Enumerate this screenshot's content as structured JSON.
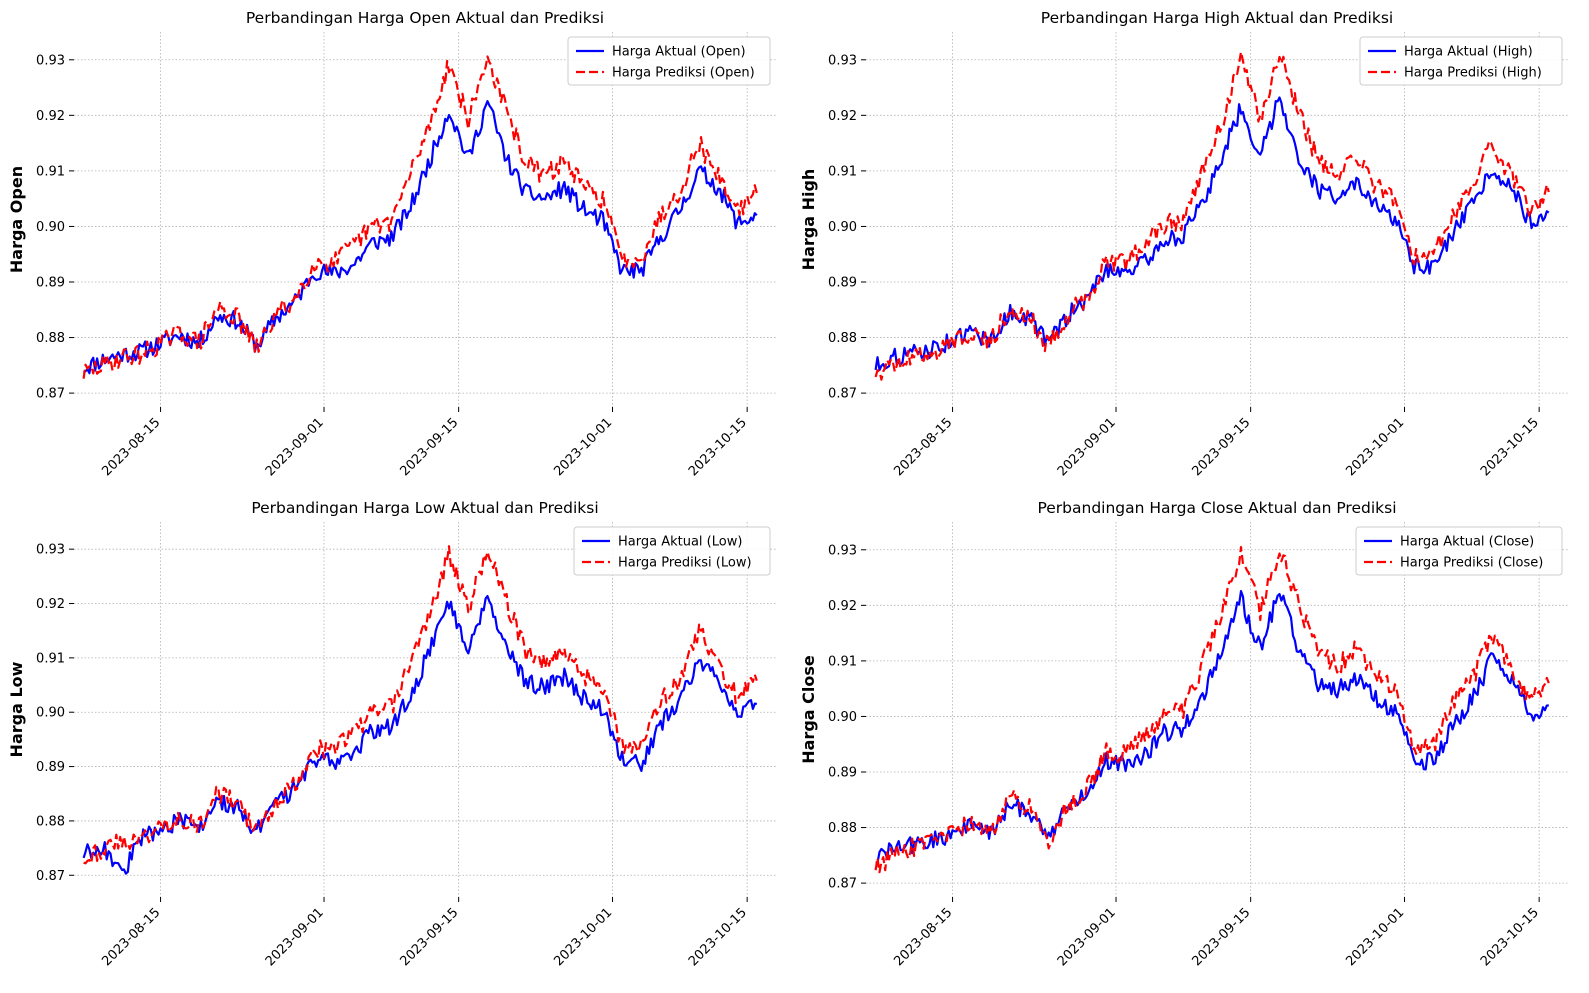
{
  "chart_data": [
    {
      "type": "line",
      "title": "Perbandingan Harga Open Aktual dan Prediksi",
      "xlabel": "",
      "ylabel": "Harga Open",
      "xlim": [
        "2023-08-06",
        "2023-10-18"
      ],
      "ylim": [
        0.8675,
        0.935
      ],
      "x_ticks": [
        "2023-08-15",
        "2023-09-01",
        "2023-09-15",
        "2023-10-01",
        "2023-10-15"
      ],
      "y_ticks": [
        "0.87",
        "0.88",
        "0.89",
        "0.90",
        "0.91",
        "0.92",
        "0.93"
      ],
      "grid": true,
      "legend": "top-right",
      "series": [
        {
          "name": "Harga Aktual (Open)",
          "color": "#0000ff",
          "style": "solid",
          "x": [
            "2023-08-07",
            "2023-08-09",
            "2023-08-11",
            "2023-08-13",
            "2023-08-15",
            "2023-08-17",
            "2023-08-19",
            "2023-08-21",
            "2023-08-23",
            "2023-08-25",
            "2023-08-27",
            "2023-08-29",
            "2023-08-31",
            "2023-09-02",
            "2023-09-04",
            "2023-09-06",
            "2023-09-08",
            "2023-09-10",
            "2023-09-12",
            "2023-09-14",
            "2023-09-16",
            "2023-09-18",
            "2023-09-20",
            "2023-09-22",
            "2023-09-24",
            "2023-09-26",
            "2023-09-28",
            "2023-09-30",
            "2023-10-02",
            "2023-10-04",
            "2023-10-06",
            "2023-10-08",
            "2023-10-10",
            "2023-10-12",
            "2023-10-14",
            "2023-10-16"
          ],
          "y": [
            0.8745,
            0.876,
            0.877,
            0.8775,
            0.879,
            0.8805,
            0.879,
            0.884,
            0.883,
            0.8785,
            0.8835,
            0.8865,
            0.892,
            0.8915,
            0.893,
            0.897,
            0.898,
            0.9035,
            0.912,
            0.921,
            0.912,
            0.9225,
            0.912,
            0.906,
            0.905,
            0.907,
            0.903,
            0.901,
            0.892,
            0.892,
            0.898,
            0.903,
            0.91,
            0.907,
            0.9005,
            0.902
          ]
        },
        {
          "name": "Harga Prediksi (Open)",
          "color": "#ff0000",
          "style": "dashed",
          "x": [
            "2023-08-07",
            "2023-08-09",
            "2023-08-11",
            "2023-08-13",
            "2023-08-15",
            "2023-08-17",
            "2023-08-19",
            "2023-08-21",
            "2023-08-23",
            "2023-08-25",
            "2023-08-27",
            "2023-08-29",
            "2023-08-31",
            "2023-09-02",
            "2023-09-04",
            "2023-09-06",
            "2023-09-08",
            "2023-09-10",
            "2023-09-12",
            "2023-09-14",
            "2023-09-16",
            "2023-09-18",
            "2023-09-20",
            "2023-09-22",
            "2023-09-24",
            "2023-09-26",
            "2023-09-28",
            "2023-09-30",
            "2023-10-02",
            "2023-10-04",
            "2023-10-06",
            "2023-10-08",
            "2023-10-10",
            "2023-10-12",
            "2023-10-14",
            "2023-10-16"
          ],
          "y": [
            0.8735,
            0.875,
            0.8765,
            0.877,
            0.879,
            0.881,
            0.879,
            0.8855,
            0.8835,
            0.878,
            0.884,
            0.887,
            0.8935,
            0.8935,
            0.8965,
            0.9,
            0.901,
            0.9095,
            0.9185,
            0.9295,
            0.919,
            0.9305,
            0.9205,
            0.9115,
            0.909,
            0.912,
            0.907,
            0.905,
            0.894,
            0.8945,
            0.902,
            0.9065,
            0.915,
            0.909,
            0.903,
            0.906
          ]
        }
      ]
    },
    {
      "type": "line",
      "title": "Perbandingan Harga High Aktual dan Prediksi",
      "xlabel": "",
      "ylabel": "Harga High",
      "xlim": [
        "2023-08-06",
        "2023-10-18"
      ],
      "ylim": [
        0.8675,
        0.935
      ],
      "x_ticks": [
        "2023-08-15",
        "2023-09-01",
        "2023-09-15",
        "2023-10-01",
        "2023-10-15"
      ],
      "y_ticks": [
        "0.87",
        "0.88",
        "0.89",
        "0.90",
        "0.91",
        "0.92",
        "0.93"
      ],
      "grid": true,
      "legend": "top-right",
      "series": [
        {
          "name": "Harga Aktual (High)",
          "color": "#0000ff",
          "style": "solid",
          "x": [
            "2023-08-07",
            "2023-08-09",
            "2023-08-11",
            "2023-08-13",
            "2023-08-15",
            "2023-08-17",
            "2023-08-19",
            "2023-08-21",
            "2023-08-23",
            "2023-08-25",
            "2023-08-27",
            "2023-08-29",
            "2023-08-31",
            "2023-09-02",
            "2023-09-04",
            "2023-09-06",
            "2023-09-08",
            "2023-09-10",
            "2023-09-12",
            "2023-09-14",
            "2023-09-16",
            "2023-09-18",
            "2023-09-20",
            "2023-09-22",
            "2023-09-24",
            "2023-09-26",
            "2023-09-28",
            "2023-09-30",
            "2023-10-02",
            "2023-10-04",
            "2023-10-06",
            "2023-10-08",
            "2023-10-10",
            "2023-10-12",
            "2023-10-14",
            "2023-10-16"
          ],
          "y": [
            0.875,
            0.8765,
            0.8772,
            0.878,
            0.8795,
            0.881,
            0.8795,
            0.8845,
            0.8835,
            0.879,
            0.884,
            0.887,
            0.8925,
            0.892,
            0.8935,
            0.8975,
            0.8985,
            0.904,
            0.9125,
            0.9215,
            0.9125,
            0.9235,
            0.9125,
            0.9065,
            0.9055,
            0.9075,
            0.9035,
            0.9015,
            0.8925,
            0.8925,
            0.8985,
            0.9035,
            0.9105,
            0.9075,
            0.901,
            0.9025
          ]
        },
        {
          "name": "Harga Prediksi (High)",
          "color": "#ff0000",
          "style": "dashed",
          "x": [
            "2023-08-07",
            "2023-08-09",
            "2023-08-11",
            "2023-08-13",
            "2023-08-15",
            "2023-08-17",
            "2023-08-19",
            "2023-08-21",
            "2023-08-23",
            "2023-08-25",
            "2023-08-27",
            "2023-08-29",
            "2023-08-31",
            "2023-09-02",
            "2023-09-04",
            "2023-09-06",
            "2023-09-08",
            "2023-09-10",
            "2023-09-12",
            "2023-09-14",
            "2023-09-16",
            "2023-09-18",
            "2023-09-20",
            "2023-09-22",
            "2023-09-24",
            "2023-09-26",
            "2023-09-28",
            "2023-09-30",
            "2023-10-02",
            "2023-10-04",
            "2023-10-06",
            "2023-10-08",
            "2023-10-10",
            "2023-10-12",
            "2023-10-14",
            "2023-10-16"
          ],
          "y": [
            0.8738,
            0.8752,
            0.8768,
            0.8772,
            0.8792,
            0.8812,
            0.8792,
            0.8858,
            0.8838,
            0.8782,
            0.8842,
            0.8872,
            0.8938,
            0.8938,
            0.8968,
            0.9002,
            0.9012,
            0.9098,
            0.9188,
            0.9298,
            0.9192,
            0.9308,
            0.9208,
            0.9118,
            0.9092,
            0.9122,
            0.9072,
            0.9052,
            0.8942,
            0.8948,
            0.9022,
            0.9068,
            0.9152,
            0.9092,
            0.9032,
            0.9062
          ]
        }
      ]
    },
    {
      "type": "line",
      "title": "Perbandingan Harga Low Aktual dan Prediksi",
      "xlabel": "",
      "ylabel": "Harga Low",
      "xlim": [
        "2023-08-06",
        "2023-10-18"
      ],
      "ylim": [
        0.866,
        0.935
      ],
      "x_ticks": [
        "2023-08-15",
        "2023-09-01",
        "2023-09-15",
        "2023-10-01",
        "2023-10-15"
      ],
      "y_ticks": [
        "0.87",
        "0.88",
        "0.89",
        "0.90",
        "0.91",
        "0.92",
        "0.93"
      ],
      "grid": true,
      "legend": "top-right",
      "series": [
        {
          "name": "Harga Aktual (Low)",
          "color": "#0000ff",
          "style": "solid",
          "x": [
            "2023-08-07",
            "2023-08-09",
            "2023-08-11",
            "2023-08-13",
            "2023-08-15",
            "2023-08-17",
            "2023-08-19",
            "2023-08-21",
            "2023-08-23",
            "2023-08-25",
            "2023-08-27",
            "2023-08-29",
            "2023-08-31",
            "2023-09-02",
            "2023-09-04",
            "2023-09-06",
            "2023-09-08",
            "2023-09-10",
            "2023-09-12",
            "2023-09-14",
            "2023-09-16",
            "2023-09-18",
            "2023-09-20",
            "2023-09-22",
            "2023-09-24",
            "2023-09-26",
            "2023-09-28",
            "2023-09-30",
            "2023-10-02",
            "2023-10-04",
            "2023-10-06",
            "2023-10-08",
            "2023-10-10",
            "2023-10-12",
            "2023-10-14",
            "2023-10-16"
          ],
          "y": [
            0.874,
            0.8755,
            0.87,
            0.877,
            0.8785,
            0.88,
            0.8785,
            0.8835,
            0.8825,
            0.878,
            0.883,
            0.886,
            0.8915,
            0.891,
            0.8925,
            0.8965,
            0.8975,
            0.903,
            0.9115,
            0.9205,
            0.9115,
            0.922,
            0.9115,
            0.9055,
            0.9045,
            0.9065,
            0.9025,
            0.9005,
            0.8915,
            0.8905,
            0.8975,
            0.9025,
            0.9095,
            0.9065,
            0.9,
            0.9015
          ]
        },
        {
          "name": "Harga Prediksi (Low)",
          "color": "#ff0000",
          "style": "dashed",
          "x": [
            "2023-08-07",
            "2023-08-09",
            "2023-08-11",
            "2023-08-13",
            "2023-08-15",
            "2023-08-17",
            "2023-08-19",
            "2023-08-21",
            "2023-08-23",
            "2023-08-25",
            "2023-08-27",
            "2023-08-29",
            "2023-08-31",
            "2023-09-02",
            "2023-09-04",
            "2023-09-06",
            "2023-09-08",
            "2023-09-10",
            "2023-09-12",
            "2023-09-14",
            "2023-09-16",
            "2023-09-18",
            "2023-09-20",
            "2023-09-22",
            "2023-09-24",
            "2023-09-26",
            "2023-09-28",
            "2023-09-30",
            "2023-10-02",
            "2023-10-04",
            "2023-10-06",
            "2023-10-08",
            "2023-10-10",
            "2023-10-12",
            "2023-10-14",
            "2023-10-16"
          ],
          "y": [
            0.8732,
            0.8748,
            0.8762,
            0.8768,
            0.8788,
            0.8808,
            0.8788,
            0.8852,
            0.8832,
            0.8778,
            0.8838,
            0.8868,
            0.8932,
            0.8932,
            0.8962,
            0.8998,
            0.9008,
            0.9092,
            0.9182,
            0.9292,
            0.9188,
            0.9302,
            0.9202,
            0.9112,
            0.9088,
            0.9118,
            0.9068,
            0.9048,
            0.8938,
            0.8942,
            0.9018,
            0.9062,
            0.9148,
            0.9088,
            0.9028,
            0.9058
          ]
        }
      ]
    },
    {
      "type": "line",
      "title": "Perbandingan Harga Close Aktual dan Prediksi",
      "xlabel": "",
      "ylabel": "Harga Close",
      "xlim": [
        "2023-08-06",
        "2023-10-18"
      ],
      "ylim": [
        0.8675,
        0.935
      ],
      "x_ticks": [
        "2023-08-15",
        "2023-09-01",
        "2023-09-15",
        "2023-10-01",
        "2023-10-15"
      ],
      "y_ticks": [
        "0.87",
        "0.88",
        "0.89",
        "0.90",
        "0.91",
        "0.92",
        "0.93"
      ],
      "grid": true,
      "legend": "top-right",
      "series": [
        {
          "name": "Harga Aktual (Close)",
          "color": "#0000ff",
          "style": "solid",
          "x": [
            "2023-08-07",
            "2023-08-09",
            "2023-08-11",
            "2023-08-13",
            "2023-08-15",
            "2023-08-17",
            "2023-08-19",
            "2023-08-21",
            "2023-08-23",
            "2023-08-25",
            "2023-08-27",
            "2023-08-29",
            "2023-08-31",
            "2023-09-02",
            "2023-09-04",
            "2023-09-06",
            "2023-09-08",
            "2023-09-10",
            "2023-09-12",
            "2023-09-14",
            "2023-09-16",
            "2023-09-18",
            "2023-09-20",
            "2023-09-22",
            "2023-09-24",
            "2023-09-26",
            "2023-09-28",
            "2023-09-30",
            "2023-10-02",
            "2023-10-04",
            "2023-10-06",
            "2023-10-08",
            "2023-10-10",
            "2023-10-12",
            "2023-10-14",
            "2023-10-16"
          ],
          "y": [
            0.8745,
            0.8762,
            0.877,
            0.8776,
            0.879,
            0.8806,
            0.879,
            0.884,
            0.883,
            0.8785,
            0.8836,
            0.8866,
            0.892,
            0.8916,
            0.893,
            0.897,
            0.898,
            0.9036,
            0.912,
            0.921,
            0.912,
            0.923,
            0.912,
            0.906,
            0.905,
            0.907,
            0.903,
            0.901,
            0.892,
            0.892,
            0.898,
            0.903,
            0.91,
            0.907,
            0.9005,
            0.902
          ]
        },
        {
          "name": "Harga Prediksi (Close)",
          "color": "#ff0000",
          "style": "dashed",
          "x": [
            "2023-08-07",
            "2023-08-09",
            "2023-08-11",
            "2023-08-13",
            "2023-08-15",
            "2023-08-17",
            "2023-08-19",
            "2023-08-21",
            "2023-08-23",
            "2023-08-25",
            "2023-08-27",
            "2023-08-29",
            "2023-08-31",
            "2023-09-02",
            "2023-09-04",
            "2023-09-06",
            "2023-09-08",
            "2023-09-10",
            "2023-09-12",
            "2023-09-14",
            "2023-09-16",
            "2023-09-18",
            "2023-09-20",
            "2023-09-22",
            "2023-09-24",
            "2023-09-26",
            "2023-09-28",
            "2023-09-30",
            "2023-10-02",
            "2023-10-04",
            "2023-10-06",
            "2023-10-08",
            "2023-10-10",
            "2023-10-12",
            "2023-10-14",
            "2023-10-16"
          ],
          "y": [
            0.8732,
            0.875,
            0.8764,
            0.877,
            0.879,
            0.881,
            0.879,
            0.8856,
            0.8834,
            0.878,
            0.884,
            0.887,
            0.8934,
            0.8934,
            0.8964,
            0.9,
            0.901,
            0.9094,
            0.9184,
            0.9294,
            0.919,
            0.9304,
            0.9204,
            0.9114,
            0.909,
            0.912,
            0.907,
            0.905,
            0.894,
            0.8944,
            0.902,
            0.9064,
            0.915,
            0.909,
            0.903,
            0.906
          ]
        }
      ]
    }
  ]
}
